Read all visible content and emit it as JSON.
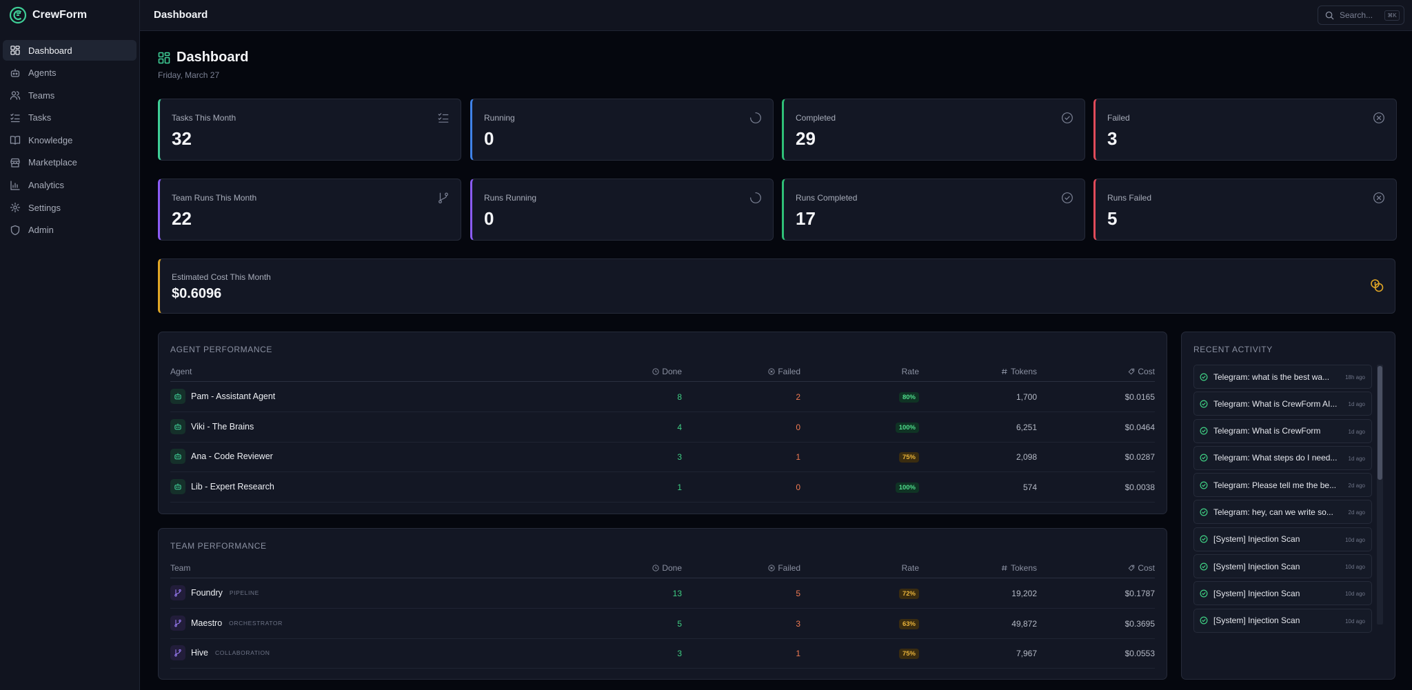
{
  "app": {
    "name": "CrewForm",
    "page_title": "Dashboard"
  },
  "sidebar": {
    "items": [
      {
        "label": "Dashboard",
        "icon": "dashboard-icon",
        "active": true
      },
      {
        "label": "Agents",
        "icon": "bot-icon"
      },
      {
        "label": "Teams",
        "icon": "users-icon"
      },
      {
        "label": "Tasks",
        "icon": "list-checks-icon"
      },
      {
        "label": "Knowledge",
        "icon": "book-icon"
      },
      {
        "label": "Marketplace",
        "icon": "store-icon"
      },
      {
        "label": "Analytics",
        "icon": "bar-chart-icon"
      },
      {
        "label": "Settings",
        "icon": "gear-icon"
      },
      {
        "label": "Admin",
        "icon": "shield-icon"
      }
    ]
  },
  "search": {
    "placeholder": "Search...",
    "shortcut": "⌘K"
  },
  "header": {
    "title": "Dashboard",
    "date": "Friday, March 27"
  },
  "stats": [
    {
      "label": "Tasks This Month",
      "value": "32",
      "accent": "#3fcf97",
      "icon": "list-checks-icon"
    },
    {
      "label": "Running",
      "value": "0",
      "accent": "#3f82e8",
      "icon": "spinner-icon"
    },
    {
      "label": "Completed",
      "value": "29",
      "accent": "#2fbf77",
      "icon": "check-circle-icon"
    },
    {
      "label": "Failed",
      "value": "3",
      "accent": "#e14b5a",
      "icon": "x-circle-icon"
    },
    {
      "label": "Team Runs This Month",
      "value": "22",
      "accent": "#8b5cf6",
      "icon": "git-branch-icon"
    },
    {
      "label": "Runs Running",
      "value": "0",
      "accent": "#8b5cf6",
      "icon": "spinner-icon"
    },
    {
      "label": "Runs Completed",
      "value": "17",
      "accent": "#2fbf77",
      "icon": "check-circle-icon"
    },
    {
      "label": "Runs Failed",
      "value": "5",
      "accent": "#e14b5a",
      "icon": "x-circle-icon"
    }
  ],
  "cost": {
    "label": "Estimated Cost This Month",
    "value": "$0.6096",
    "accent": "#e1a726",
    "icon": "coins-icon"
  },
  "agent_performance": {
    "title": "AGENT PERFORMANCE",
    "columns": {
      "name": "Agent",
      "done": "Done",
      "failed": "Failed",
      "rate": "Rate",
      "tokens": "Tokens",
      "cost": "Cost"
    },
    "rows": [
      {
        "name": "Pam - Assistant Agent",
        "done": "8",
        "failed": "2",
        "rate": "80%",
        "rate_level": "green",
        "tokens": "1,700",
        "cost": "$0.0165"
      },
      {
        "name": "Viki - The Brains",
        "done": "4",
        "failed": "0",
        "rate": "100%",
        "rate_level": "green",
        "tokens": "6,251",
        "cost": "$0.0464"
      },
      {
        "name": "Ana - Code Reviewer",
        "done": "3",
        "failed": "1",
        "rate": "75%",
        "rate_level": "amber",
        "tokens": "2,098",
        "cost": "$0.0287"
      },
      {
        "name": "Lib - Expert Research",
        "done": "1",
        "failed": "0",
        "rate": "100%",
        "rate_level": "green",
        "tokens": "574",
        "cost": "$0.0038"
      }
    ]
  },
  "team_performance": {
    "title": "TEAM PERFORMANCE",
    "columns": {
      "name": "Team",
      "done": "Done",
      "failed": "Failed",
      "rate": "Rate",
      "tokens": "Tokens",
      "cost": "Cost"
    },
    "rows": [
      {
        "name": "Foundry",
        "mode": "PIPELINE",
        "done": "13",
        "failed": "5",
        "rate": "72%",
        "rate_level": "amber",
        "tokens": "19,202",
        "cost": "$0.1787"
      },
      {
        "name": "Maestro",
        "mode": "ORCHESTRATOR",
        "done": "5",
        "failed": "3",
        "rate": "63%",
        "rate_level": "amber",
        "tokens": "49,872",
        "cost": "$0.3695"
      },
      {
        "name": "Hive",
        "mode": "COLLABORATION",
        "done": "3",
        "failed": "1",
        "rate": "75%",
        "rate_level": "amber",
        "tokens": "7,967",
        "cost": "$0.0553"
      }
    ]
  },
  "recent_activity": {
    "title": "RECENT ACTIVITY",
    "items": [
      {
        "text": "Telegram: what is the best wa...",
        "time": "18h ago"
      },
      {
        "text": "Telegram: What is CrewForm AI...",
        "time": "1d ago"
      },
      {
        "text": "Telegram: What is CrewForm",
        "time": "1d ago"
      },
      {
        "text": "Telegram: What steps do I need...",
        "time": "1d ago"
      },
      {
        "text": "Telegram: Please tell me the be...",
        "time": "2d ago"
      },
      {
        "text": "Telegram: hey, can we write so...",
        "time": "2d ago"
      },
      {
        "text": "[System] Injection Scan",
        "time": "10d ago"
      },
      {
        "text": "[System] Injection Scan",
        "time": "10d ago"
      },
      {
        "text": "[System] Injection Scan",
        "time": "10d ago"
      },
      {
        "text": "[System] Injection Scan",
        "time": "10d ago"
      }
    ]
  }
}
